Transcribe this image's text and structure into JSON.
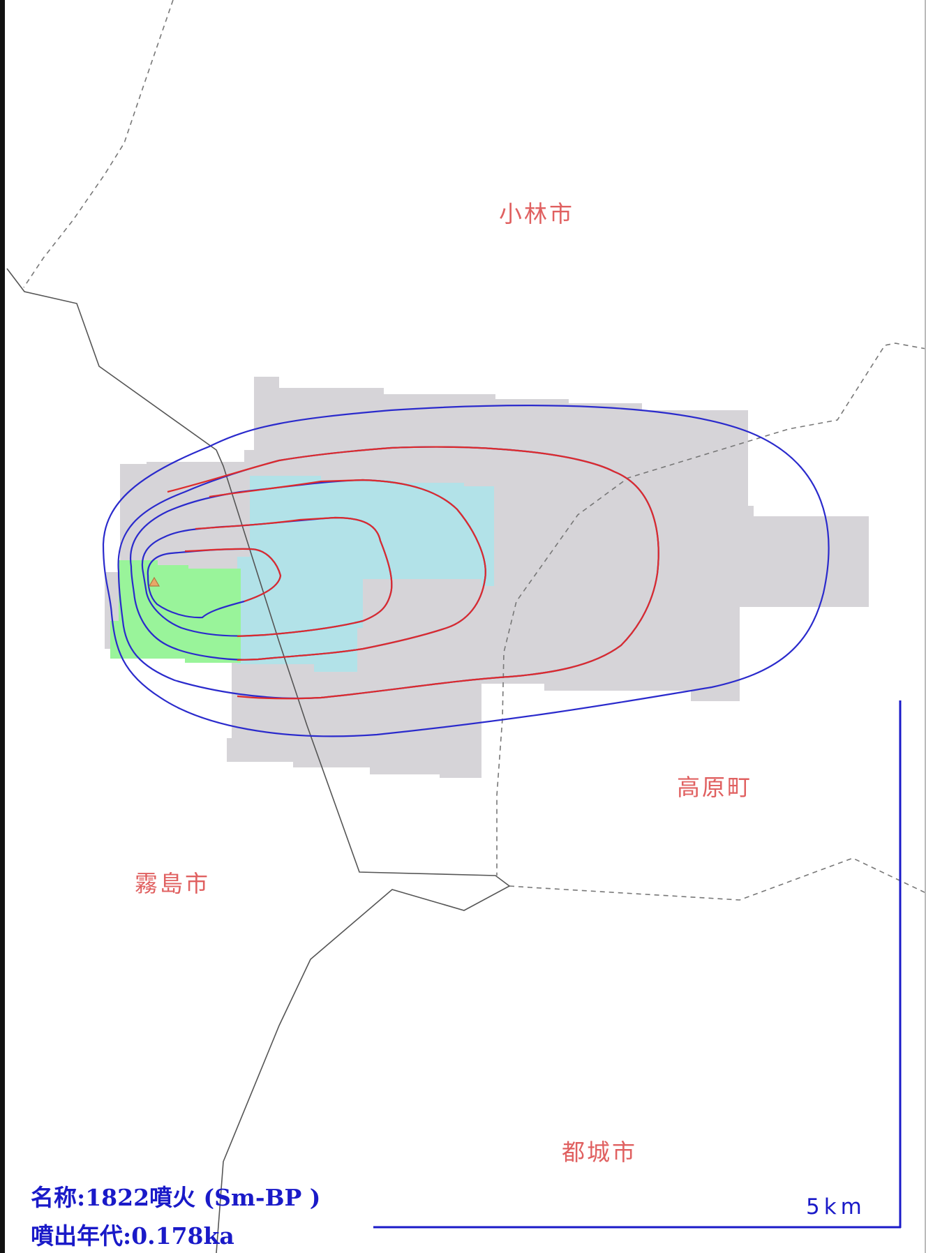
{
  "places": {
    "kobayashi": "小林市",
    "takaharu": "高原町",
    "kirishima": "霧島市",
    "miyakonojo": "都城市"
  },
  "info": {
    "name_label": "名称",
    "name_value": "1822噴火 (Sm-BP )",
    "age_label": "噴出年代",
    "age_value": "0.178ka"
  },
  "scale": {
    "label": "5km",
    "color": "#1a1ac8"
  },
  "colors": {
    "zone_gray": "#d6d4d8",
    "zone_cyan": "#b2e2e8",
    "zone_green": "#99f49a",
    "contour_outer": "#2a2acc",
    "contour_inner": "#dd2b2b",
    "boundary": "#555555",
    "vent": "#e8a868"
  },
  "icons": {
    "vent": "triangle-vent-icon"
  }
}
